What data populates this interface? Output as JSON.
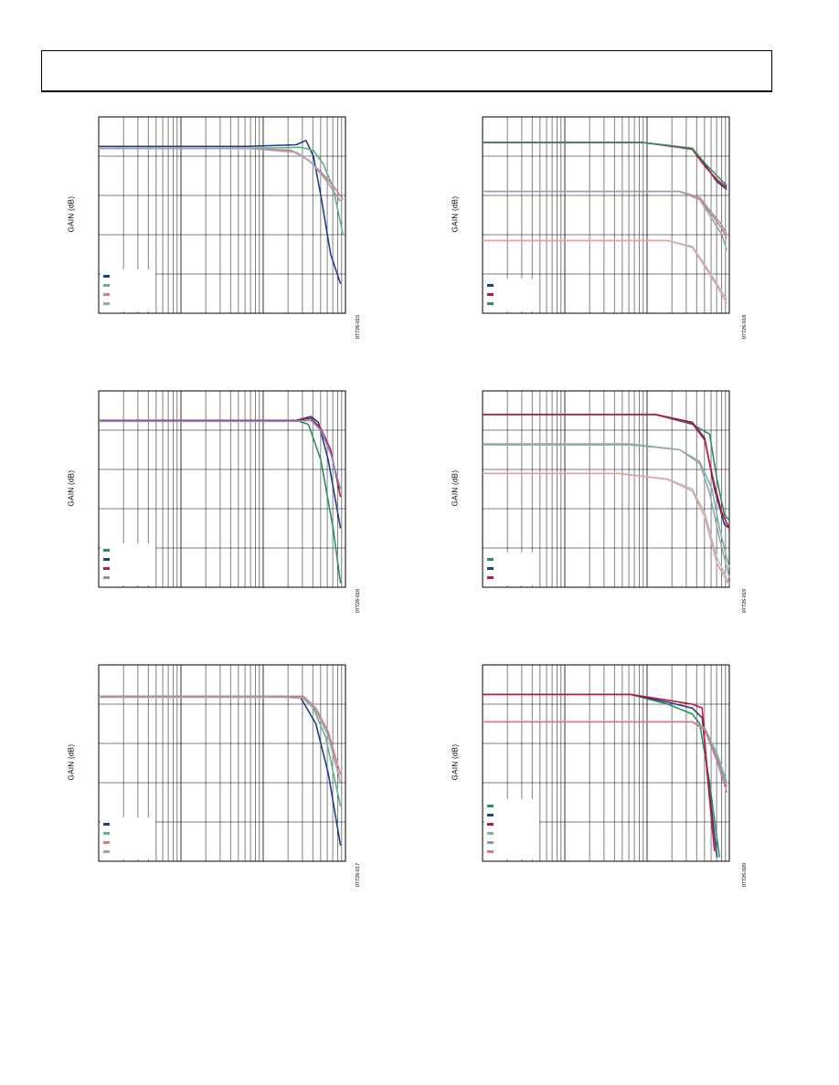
{
  "page": {
    "header": ""
  },
  "chart_data": [
    {
      "id": "fig-15",
      "type": "line",
      "xscale": "log",
      "ylabel": "GAIN (dB)",
      "figure_id": "07726-015",
      "legend": [
        "",
        "",
        "",
        ""
      ],
      "series": [
        {
          "color": "#1f3f8a",
          "points": [
            [
              0.0,
              0.15
            ],
            [
              0.6,
              0.15
            ],
            [
              0.8,
              0.142
            ],
            [
              0.84,
              0.12
            ],
            [
              0.87,
              0.2
            ],
            [
              0.9,
              0.4
            ],
            [
              0.94,
              0.7
            ],
            [
              0.98,
              0.85
            ]
          ]
        },
        {
          "color": "#5fb486",
          "points": [
            [
              0.0,
              0.16
            ],
            [
              0.6,
              0.16
            ],
            [
              0.82,
              0.155
            ],
            [
              0.87,
              0.17
            ],
            [
              0.91,
              0.24
            ],
            [
              0.95,
              0.36
            ],
            [
              0.99,
              0.6
            ]
          ]
        },
        {
          "color": "#e07880",
          "points": [
            [
              0.0,
              0.16
            ],
            [
              0.6,
              0.16
            ],
            [
              0.78,
              0.17
            ],
            [
              0.85,
              0.22
            ],
            [
              0.9,
              0.28
            ],
            [
              0.95,
              0.35
            ],
            [
              0.99,
              0.42
            ]
          ]
        },
        {
          "color": "#9aa4b4",
          "points": [
            [
              0.0,
              0.16
            ],
            [
              0.6,
              0.16
            ],
            [
              0.8,
              0.18
            ],
            [
              0.86,
              0.23
            ],
            [
              0.92,
              0.32
            ],
            [
              0.98,
              0.43
            ]
          ]
        }
      ]
    },
    {
      "id": "fig-18",
      "type": "line",
      "xscale": "log",
      "ylabel": "GAIN (dB)",
      "figure_id": "07726-018",
      "legend": [
        "",
        "",
        ""
      ],
      "series": [
        {
          "color": "#1f3f8a",
          "points": [
            [
              0.0,
              0.13
            ],
            [
              0.65,
              0.13
            ],
            [
              0.85,
              0.16
            ],
            [
              0.9,
              0.24
            ],
            [
              0.95,
              0.33
            ],
            [
              0.99,
              0.37
            ]
          ]
        },
        {
          "color": "#c8143c",
          "points": [
            [
              0.0,
              0.13
            ],
            [
              0.65,
              0.13
            ],
            [
              0.85,
              0.165
            ],
            [
              0.9,
              0.25
            ],
            [
              0.95,
              0.32
            ],
            [
              0.99,
              0.36
            ]
          ]
        },
        {
          "color": "#2a8f5c",
          "points": [
            [
              0.0,
              0.13
            ],
            [
              0.65,
              0.13
            ],
            [
              0.85,
              0.16
            ],
            [
              0.9,
              0.235
            ],
            [
              0.95,
              0.3
            ],
            [
              0.99,
              0.35
            ]
          ]
        },
        {
          "color": "#7fb6a0",
          "points": [
            [
              0.0,
              0.38
            ],
            [
              0.8,
              0.38
            ],
            [
              0.88,
              0.42
            ],
            [
              0.93,
              0.52
            ],
            [
              0.97,
              0.6
            ],
            [
              0.99,
              0.68
            ]
          ]
        },
        {
          "color": "#e07880",
          "points": [
            [
              0.0,
              0.38
            ],
            [
              0.8,
              0.38
            ],
            [
              0.88,
              0.42
            ],
            [
              0.93,
              0.5
            ],
            [
              0.97,
              0.57
            ],
            [
              0.99,
              0.62
            ]
          ]
        },
        {
          "color": "#9aa4b4",
          "points": [
            [
              0.0,
              0.38
            ],
            [
              0.8,
              0.38
            ],
            [
              0.88,
              0.41
            ],
            [
              0.93,
              0.49
            ],
            [
              0.97,
              0.55
            ],
            [
              0.99,
              0.6
            ]
          ]
        },
        {
          "color": "#a8c8c0",
          "points": [
            [
              0.0,
              0.63
            ],
            [
              0.75,
              0.63
            ],
            [
              0.85,
              0.66
            ],
            [
              0.9,
              0.75
            ],
            [
              0.95,
              0.85
            ],
            [
              0.99,
              0.93
            ]
          ]
        },
        {
          "color": "#e8a0a8",
          "points": [
            [
              0.0,
              0.63
            ],
            [
              0.75,
              0.63
            ],
            [
              0.85,
              0.665
            ],
            [
              0.9,
              0.76
            ],
            [
              0.95,
              0.86
            ],
            [
              0.99,
              0.95
            ]
          ]
        }
      ]
    },
    {
      "id": "fig-16",
      "type": "line",
      "xscale": "log",
      "ylabel": "GAIN (dB)",
      "figure_id": "07726-016",
      "legend": [
        "",
        "",
        "",
        ""
      ],
      "series": [
        {
          "color": "#2a8f5c",
          "points": [
            [
              0.0,
              0.15
            ],
            [
              0.8,
              0.15
            ],
            [
              0.85,
              0.17
            ],
            [
              0.9,
              0.35
            ],
            [
              0.95,
              0.7
            ],
            [
              0.98,
              0.98
            ]
          ]
        },
        {
          "color": "#1f3f8a",
          "points": [
            [
              0.0,
              0.15
            ],
            [
              0.8,
              0.15
            ],
            [
              0.86,
              0.13
            ],
            [
              0.89,
              0.16
            ],
            [
              0.93,
              0.35
            ],
            [
              0.98,
              0.7
            ]
          ]
        },
        {
          "color": "#c8143c",
          "points": [
            [
              0.0,
              0.15
            ],
            [
              0.8,
              0.15
            ],
            [
              0.86,
              0.14
            ],
            [
              0.9,
              0.19
            ],
            [
              0.94,
              0.3
            ],
            [
              0.98,
              0.54
            ]
          ]
        },
        {
          "color": "#7d96c8",
          "points": [
            [
              0.0,
              0.155
            ],
            [
              0.8,
              0.155
            ],
            [
              0.86,
              0.15
            ],
            [
              0.9,
              0.2
            ],
            [
              0.94,
              0.32
            ],
            [
              0.98,
              0.5
            ]
          ]
        }
      ]
    },
    {
      "id": "fig-19",
      "type": "line",
      "xscale": "log",
      "ylabel": "GAIN (dB)",
      "figure_id": "07726-019",
      "legend": [
        "",
        "",
        ""
      ],
      "series": [
        {
          "color": "#2a8f5c",
          "points": [
            [
              0.0,
              0.12
            ],
            [
              0.7,
              0.12
            ],
            [
              0.85,
              0.17
            ],
            [
              0.92,
              0.22
            ],
            [
              0.95,
              0.45
            ],
            [
              0.98,
              0.63
            ],
            [
              1.0,
              0.66
            ]
          ]
        },
        {
          "color": "#1f3f8a",
          "points": [
            [
              0.0,
              0.12
            ],
            [
              0.7,
              0.12
            ],
            [
              0.85,
              0.16
            ],
            [
              0.9,
              0.24
            ],
            [
              0.94,
              0.5
            ],
            [
              0.98,
              0.68
            ],
            [
              1.0,
              0.7
            ]
          ]
        },
        {
          "color": "#c8143c",
          "points": [
            [
              0.0,
              0.12
            ],
            [
              0.7,
              0.12
            ],
            [
              0.85,
              0.165
            ],
            [
              0.9,
              0.25
            ],
            [
              0.94,
              0.48
            ],
            [
              0.97,
              0.62
            ],
            [
              1.0,
              0.7
            ]
          ]
        },
        {
          "color": "#7fb6a0",
          "points": [
            [
              0.0,
              0.27
            ],
            [
              0.6,
              0.27
            ],
            [
              0.8,
              0.3
            ],
            [
              0.88,
              0.36
            ],
            [
              0.93,
              0.5
            ],
            [
              0.96,
              0.7
            ],
            [
              1.0,
              0.9
            ]
          ]
        },
        {
          "color": "#9aa4b4",
          "points": [
            [
              0.0,
              0.275
            ],
            [
              0.6,
              0.275
            ],
            [
              0.8,
              0.3
            ],
            [
              0.88,
              0.37
            ],
            [
              0.92,
              0.52
            ],
            [
              0.96,
              0.75
            ],
            [
              1.0,
              0.95
            ]
          ]
        },
        {
          "color": "#a8c8c0",
          "points": [
            [
              0.0,
              0.42
            ],
            [
              0.55,
              0.42
            ],
            [
              0.75,
              0.45
            ],
            [
              0.85,
              0.5
            ],
            [
              0.9,
              0.62
            ],
            [
              0.95,
              0.85
            ],
            [
              1.0,
              0.98
            ]
          ]
        },
        {
          "color": "#e8a0a8",
          "points": [
            [
              0.0,
              0.42
            ],
            [
              0.55,
              0.42
            ],
            [
              0.75,
              0.45
            ],
            [
              0.85,
              0.51
            ],
            [
              0.9,
              0.64
            ],
            [
              0.95,
              0.88
            ],
            [
              1.0,
              0.99
            ]
          ]
        }
      ]
    },
    {
      "id": "fig-17",
      "type": "line",
      "xscale": "log",
      "ylabel": "GAIN (dB)",
      "figure_id": "07726-017",
      "legend": [
        "",
        "",
        "",
        ""
      ],
      "series": [
        {
          "color": "#1f3f8a",
          "points": [
            [
              0.0,
              0.16
            ],
            [
              0.75,
              0.16
            ],
            [
              0.82,
              0.17
            ],
            [
              0.88,
              0.3
            ],
            [
              0.93,
              0.55
            ],
            [
              0.98,
              0.92
            ]
          ]
        },
        {
          "color": "#5fb486",
          "points": [
            [
              0.0,
              0.16
            ],
            [
              0.75,
              0.16
            ],
            [
              0.82,
              0.16
            ],
            [
              0.87,
              0.22
            ],
            [
              0.92,
              0.37
            ],
            [
              0.98,
              0.72
            ]
          ]
        },
        {
          "color": "#e07880",
          "points": [
            [
              0.0,
              0.16
            ],
            [
              0.75,
              0.16
            ],
            [
              0.83,
              0.16
            ],
            [
              0.88,
              0.22
            ],
            [
              0.93,
              0.34
            ],
            [
              0.98,
              0.56
            ]
          ]
        },
        {
          "color": "#9aa4b4",
          "points": [
            [
              0.0,
              0.165
            ],
            [
              0.75,
              0.165
            ],
            [
              0.83,
              0.17
            ],
            [
              0.88,
              0.23
            ],
            [
              0.93,
              0.36
            ],
            [
              0.98,
              0.6
            ]
          ]
        }
      ]
    },
    {
      "id": "fig-20",
      "type": "line",
      "xscale": "log",
      "ylabel": "GAIN (dB)",
      "figure_id": "07726-020",
      "legend": [
        "",
        "",
        "",
        "",
        "",
        ""
      ],
      "series": [
        {
          "color": "#2a8f5c",
          "points": [
            [
              0.0,
              0.15
            ],
            [
              0.6,
              0.15
            ],
            [
              0.75,
              0.2
            ],
            [
              0.85,
              0.25
            ],
            [
              0.88,
              0.3
            ],
            [
              0.92,
              0.6
            ],
            [
              0.96,
              0.98
            ]
          ]
        },
        {
          "color": "#1f3f8a",
          "points": [
            [
              0.0,
              0.15
            ],
            [
              0.6,
              0.15
            ],
            [
              0.75,
              0.19
            ],
            [
              0.85,
              0.22
            ],
            [
              0.89,
              0.27
            ],
            [
              0.92,
              0.65
            ],
            [
              0.95,
              0.98
            ]
          ]
        },
        {
          "color": "#c8143c",
          "points": [
            [
              0.0,
              0.15
            ],
            [
              0.6,
              0.15
            ],
            [
              0.75,
              0.18
            ],
            [
              0.85,
              0.2
            ],
            [
              0.89,
              0.22
            ],
            [
              0.91,
              0.55
            ],
            [
              0.94,
              0.95
            ]
          ]
        },
        {
          "color": "#7fb6a0",
          "points": [
            [
              0.0,
              0.29
            ],
            [
              0.85,
              0.29
            ],
            [
              0.9,
              0.32
            ],
            [
              0.95,
              0.45
            ],
            [
              0.99,
              0.6
            ]
          ]
        },
        {
          "color": "#7d96c8",
          "points": [
            [
              0.0,
              0.29
            ],
            [
              0.85,
              0.29
            ],
            [
              0.9,
              0.33
            ],
            [
              0.95,
              0.47
            ],
            [
              0.99,
              0.62
            ]
          ]
        },
        {
          "color": "#e07880",
          "points": [
            [
              0.0,
              0.29
            ],
            [
              0.85,
              0.29
            ],
            [
              0.9,
              0.33
            ],
            [
              0.95,
              0.49
            ],
            [
              0.99,
              0.65
            ]
          ]
        }
      ]
    }
  ]
}
